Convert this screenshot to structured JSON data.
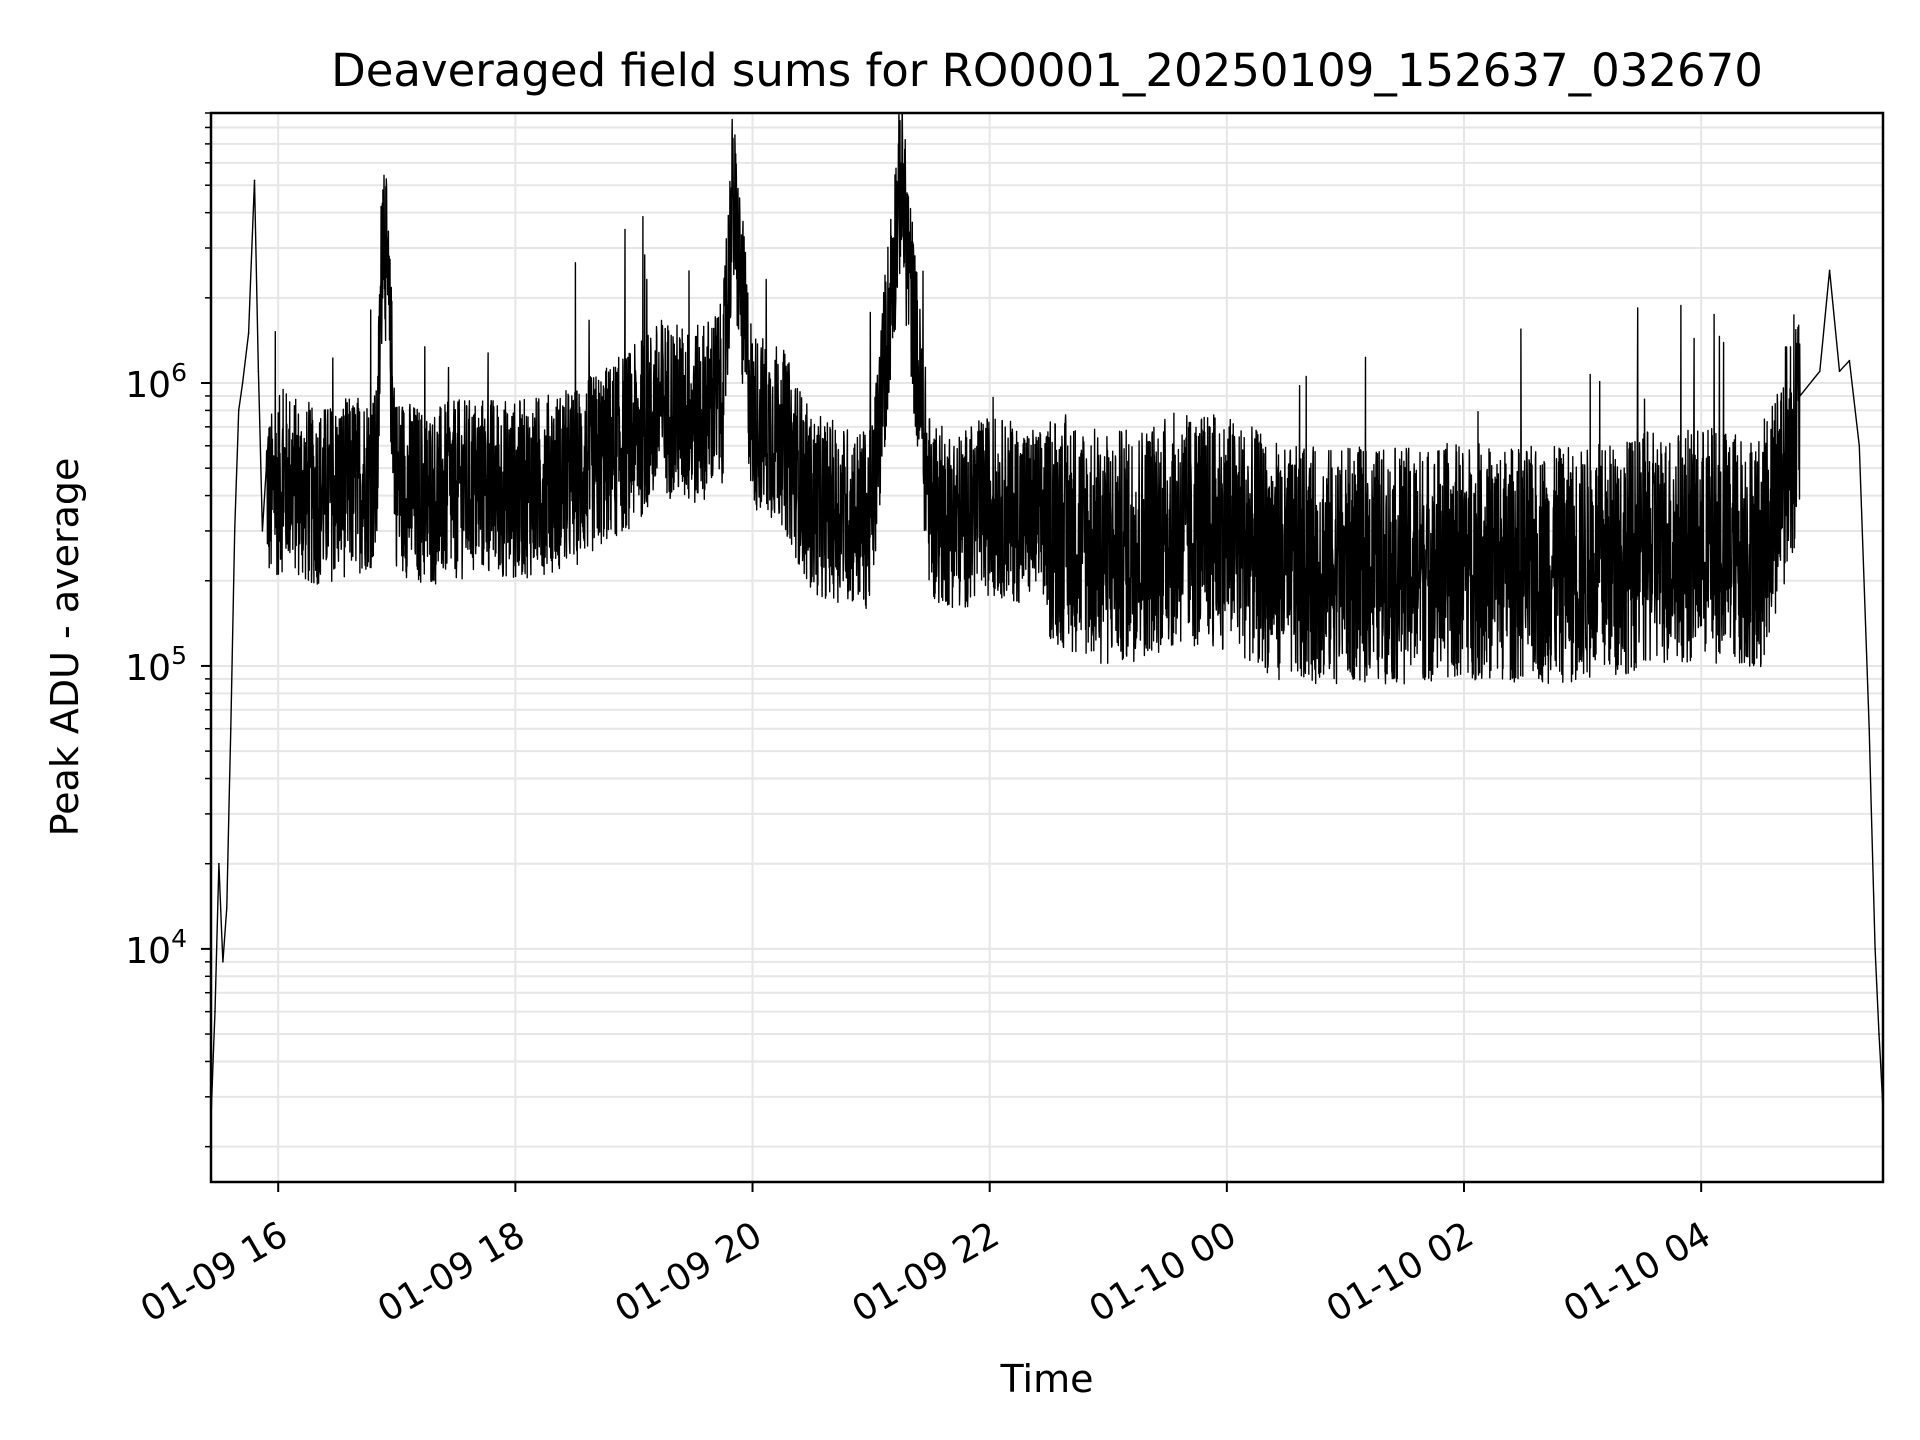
{
  "chart_data": {
    "type": "line",
    "title": "Deaveraged field sums for RO0001_20250109_152637_032670",
    "xlabel": "Time",
    "ylabel": "Peak ADU - average",
    "y_scale": "log",
    "ylim": [
      1500,
      9000000
    ],
    "xlim": [
      "2025-01-09 15:26",
      "2025-01-10 05:32"
    ],
    "grid": true,
    "grid_minor": true,
    "line_color": "#000000",
    "grid_color": "#e6e6e6",
    "x_ticks": [
      {
        "t": "2025-01-09 16:00",
        "label": "01-09 16"
      },
      {
        "t": "2025-01-09 18:00",
        "label": "01-09 18"
      },
      {
        "t": "2025-01-09 20:00",
        "label": "01-09 20"
      },
      {
        "t": "2025-01-09 22:00",
        "label": "01-09 22"
      },
      {
        "t": "2025-01-10 00:00",
        "label": "01-10 00"
      },
      {
        "t": "2025-01-10 02:00",
        "label": "01-10 02"
      },
      {
        "t": "2025-01-10 04:00",
        "label": "01-10 04"
      }
    ],
    "y_ticks": [
      {
        "v": 10000,
        "base": "10",
        "exp": "4"
      },
      {
        "v": 100000,
        "base": "10",
        "exp": "5"
      },
      {
        "v": 1000000,
        "base": "10",
        "exp": "6"
      }
    ],
    "series": [
      {
        "values_note_free": true,
        "x": [
          "2025-01-09 15:26",
          "2025-01-09 15:28",
          "2025-01-09 15:30",
          "2025-01-09 15:32",
          "2025-01-09 15:34",
          "2025-01-09 15:36",
          "2025-01-09 15:38",
          "2025-01-09 15:40",
          "2025-01-09 15:42",
          "2025-01-09 15:45",
          "2025-01-09 15:48",
          "2025-01-09 15:50",
          "2025-01-09 15:52",
          "2025-01-09 15:54",
          "2025-01-09 15:56",
          "2025-01-09 15:58",
          "2025-01-09 16:05",
          "2025-01-09 16:15",
          "2025-01-09 16:30",
          "2025-01-09 16:50",
          "2025-01-09 16:53",
          "2025-01-09 17:00",
          "2025-01-09 17:15",
          "2025-01-09 17:30",
          "2025-01-09 17:45",
          "2025-01-09 18:00",
          "2025-01-09 18:30",
          "2025-01-09 19:00",
          "2025-01-09 19:15",
          "2025-01-09 19:30",
          "2025-01-09 19:45",
          "2025-01-09 19:50",
          "2025-01-09 20:00",
          "2025-01-09 20:15",
          "2025-01-09 20:30",
          "2025-01-09 21:00",
          "2025-01-09 21:15",
          "2025-01-09 21:30",
          "2025-01-09 21:45",
          "2025-01-09 22:00",
          "2025-01-09 22:30",
          "2025-01-09 23:00",
          "2025-01-09 23:30",
          "2025-01-10 00:00",
          "2025-01-10 00:30",
          "2025-01-10 01:00",
          "2025-01-10 01:30",
          "2025-01-10 02:00",
          "2025-01-10 02:30",
          "2025-01-10 03:00",
          "2025-01-10 03:30",
          "2025-01-10 04:00",
          "2025-01-10 04:30",
          "2025-01-10 04:50",
          "2025-01-10 05:00",
          "2025-01-10 05:05",
          "2025-01-10 05:10",
          "2025-01-10 05:15",
          "2025-01-10 05:20",
          "2025-01-10 05:25",
          "2025-01-10 05:28",
          "2025-01-10 05:30",
          "2025-01-10 05:32"
        ],
        "y": [
          2500,
          6000,
          20000,
          9000,
          14000,
          60000,
          300000,
          800000,
          1000000,
          1500000,
          5200000,
          1100000,
          300000,
          500000,
          400000,
          450000,
          500000,
          420000,
          450000,
          500000,
          4800000,
          480000,
          420000,
          450000,
          470000,
          450000,
          500000,
          700000,
          900000,
          800000,
          1000000,
          5000000,
          800000,
          700000,
          400000,
          350000,
          5800000,
          380000,
          350000,
          400000,
          350000,
          280000,
          330000,
          330000,
          250000,
          250000,
          250000,
          260000,
          250000,
          250000,
          280000,
          300000,
          280000,
          900000,
          1100000,
          2500000,
          1100000,
          1200000,
          600000,
          60000,
          10000,
          5000,
          2700
        ]
      }
    ]
  }
}
